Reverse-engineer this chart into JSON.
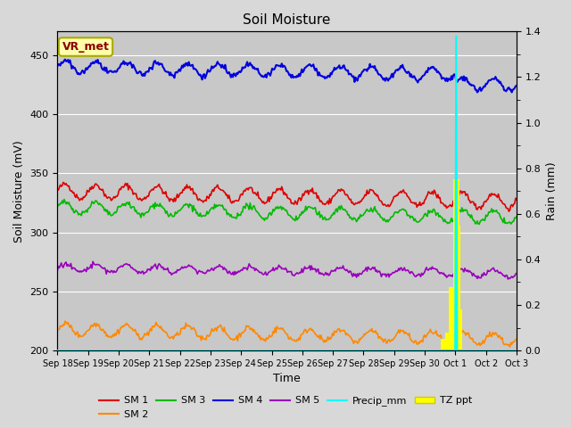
{
  "title": "Soil Moisture",
  "xlabel": "Time",
  "ylabel_left": "Soil Moisture (mV)",
  "ylabel_right": "Rain (mm)",
  "ylim_left": [
    200,
    470
  ],
  "ylim_right": [
    0.0,
    1.4
  ],
  "background_color": "#d8d8d8",
  "plot_bg_color": "#c8c8c8",
  "n_points": 480,
  "sm1_base": 335,
  "sm1_amp": 6,
  "sm1_trend": -0.018,
  "sm2_base": 218,
  "sm2_amp": 5,
  "sm2_trend": -0.018,
  "sm3_base": 321,
  "sm3_amp": 5,
  "sm3_trend": -0.018,
  "sm4_base": 440,
  "sm4_amp": 5,
  "sm4_trend": -0.015,
  "sm5_base": 270,
  "sm5_amp": 3,
  "sm5_trend": -0.01,
  "colors": {
    "SM1": "#dd0000",
    "SM2": "#ff8800",
    "SM3": "#00bb00",
    "SM4": "#0000dd",
    "SM5": "#9900bb",
    "precip": "#00ffff",
    "tzppt": "#ffff00"
  },
  "xtick_labels": [
    "Sep 18",
    "Sep 19",
    "Sep 20",
    "Sep 21",
    "Sep 22",
    "Sep 23",
    "Sep 24",
    "Sep 25",
    "Sep 26",
    "Sep 27",
    "Sep 28",
    "Sep 29",
    "Sep 30",
    "Oct 1",
    "Oct 2",
    "Oct 3"
  ],
  "legend_label_box": "VR_met",
  "legend_box_bg": "#ffffaa",
  "legend_box_edge": "#aaaa00"
}
